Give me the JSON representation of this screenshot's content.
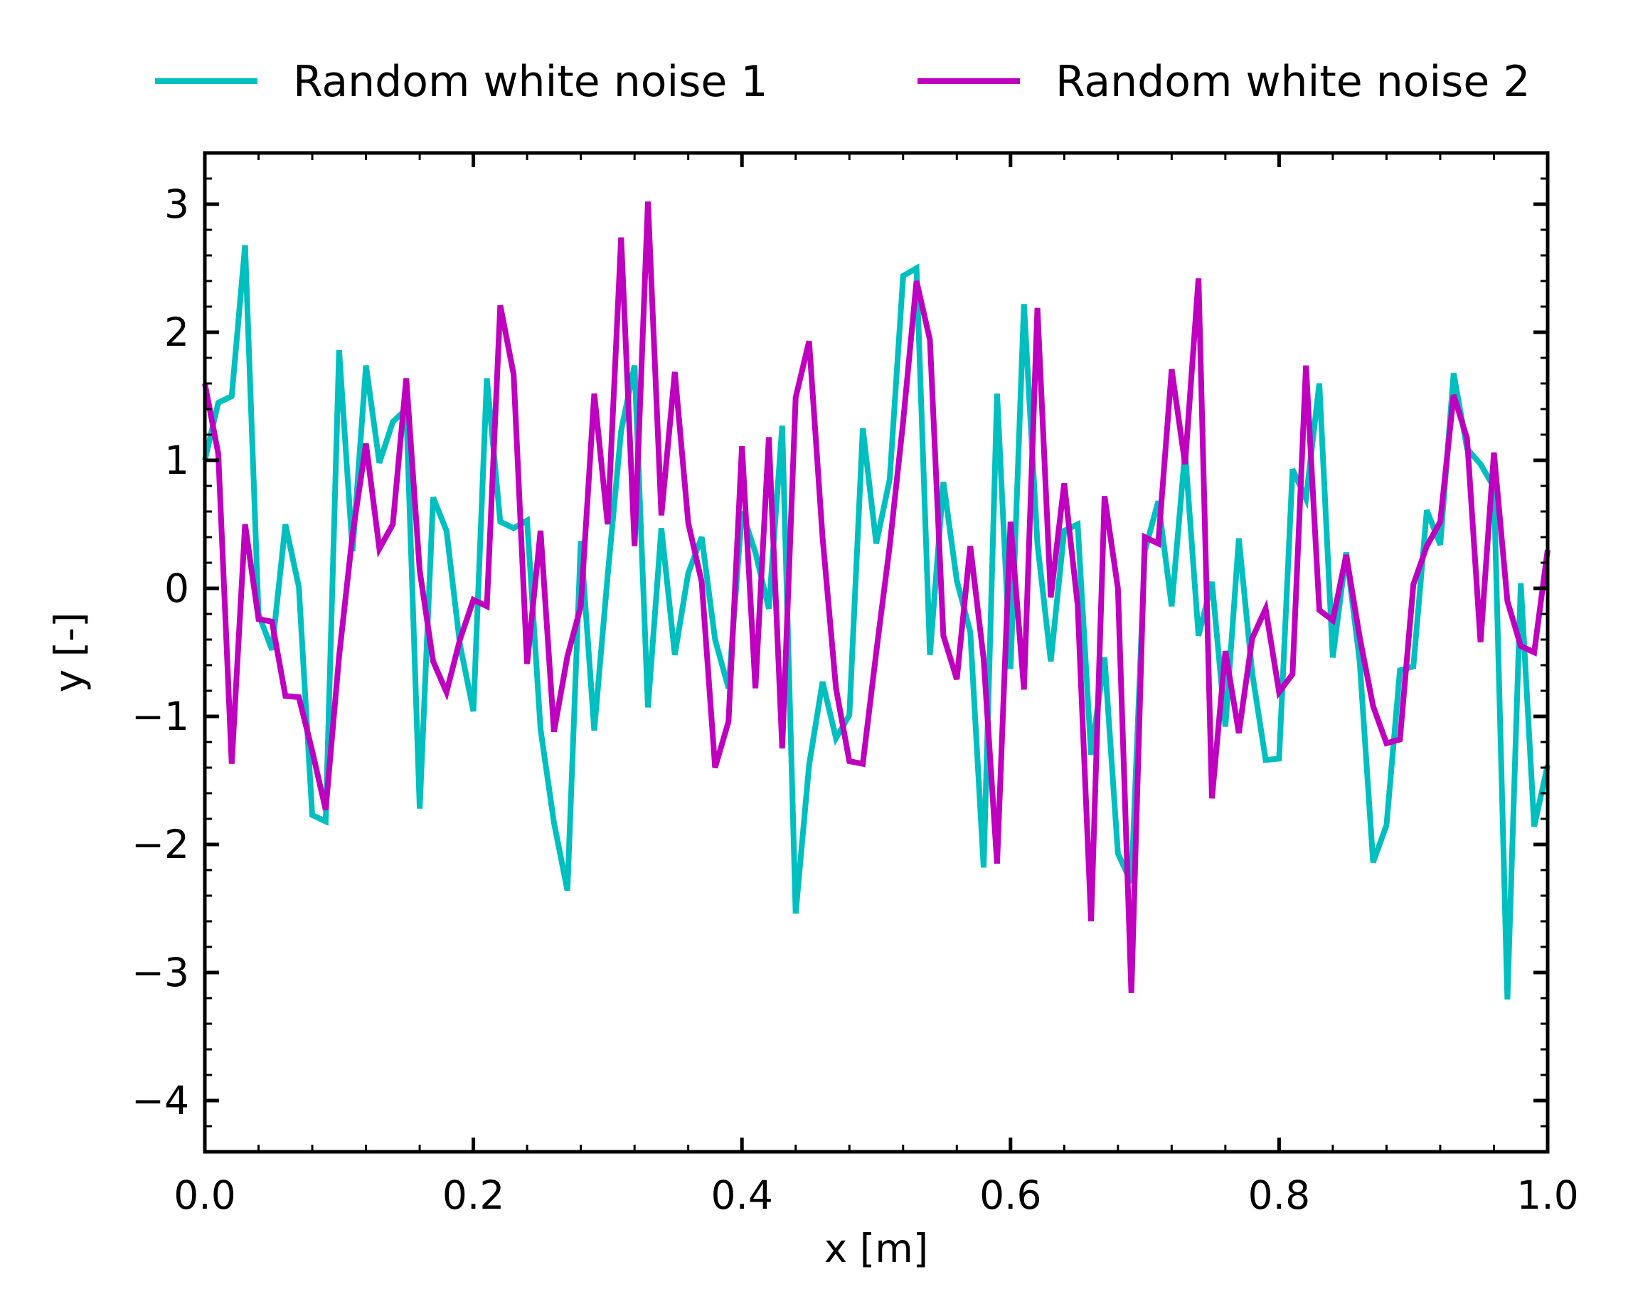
{
  "chart_data": {
    "type": "line",
    "xlabel": "x [m]",
    "ylabel": "y [-]",
    "xlim": [
      0.0,
      1.0
    ],
    "ylim": [
      -4.4,
      3.4
    ],
    "xticks": [
      0.0,
      0.2,
      0.4,
      0.6,
      0.8,
      1.0
    ],
    "xtick_labels": [
      "0.0",
      "0.2",
      "0.4",
      "0.6",
      "0.8",
      "1.0"
    ],
    "yticks": [
      3,
      2,
      1,
      0,
      -1,
      -2,
      -3,
      -4
    ],
    "ytick_labels": [
      "3",
      "2",
      "1",
      "0",
      "−1",
      "−2",
      "−3",
      "−4"
    ],
    "grid": false,
    "legend_position": "top-center",
    "x": [
      0.0,
      0.01,
      0.02,
      0.03,
      0.04,
      0.05,
      0.06,
      0.07,
      0.08,
      0.09,
      0.1,
      0.11,
      0.12,
      0.13,
      0.14,
      0.15,
      0.16,
      0.17,
      0.18,
      0.19,
      0.2,
      0.21,
      0.22,
      0.23,
      0.24,
      0.25,
      0.26,
      0.27,
      0.28,
      0.29,
      0.3,
      0.31,
      0.32,
      0.33,
      0.34,
      0.35,
      0.36,
      0.37,
      0.38,
      0.39,
      0.4,
      0.41,
      0.42,
      0.43,
      0.44,
      0.45,
      0.46,
      0.47,
      0.48,
      0.49,
      0.5,
      0.51,
      0.52,
      0.53,
      0.54,
      0.55,
      0.56,
      0.57,
      0.58,
      0.59,
      0.6,
      0.61,
      0.62,
      0.63,
      0.64,
      0.65,
      0.66,
      0.67,
      0.68,
      0.69,
      0.7,
      0.71,
      0.72,
      0.73,
      0.74,
      0.75,
      0.76,
      0.77,
      0.78,
      0.79,
      0.8,
      0.81,
      0.82,
      0.83,
      0.84,
      0.85,
      0.86,
      0.87,
      0.88,
      0.89,
      0.9,
      0.91,
      0.92,
      0.93,
      0.94,
      0.95,
      0.96,
      0.97,
      0.98,
      0.99,
      1.0
    ],
    "series": [
      {
        "name": "Random white noise 1",
        "color": "#00bfbf",
        "values": [
          1.0,
          1.45,
          1.5,
          2.68,
          -0.2,
          -0.48,
          0.5,
          0.01,
          -1.77,
          -1.82,
          1.86,
          0.29,
          1.74,
          0.98,
          1.3,
          1.4,
          -1.72,
          0.71,
          0.45,
          -0.44,
          -0.96,
          1.64,
          0.52,
          0.47,
          0.53,
          -1.1,
          -1.83,
          -2.36,
          0.37,
          -1.11,
          0.1,
          1.23,
          1.74,
          -0.93,
          0.47,
          -0.52,
          0.12,
          0.4,
          -0.4,
          -0.78,
          0.6,
          0.28,
          -0.16,
          1.27,
          -2.54,
          -1.38,
          -0.73,
          -1.17,
          -0.99,
          1.25,
          0.35,
          0.85,
          2.44,
          2.5,
          -0.52,
          0.83,
          0.06,
          -0.34,
          -2.18,
          1.52,
          -0.63,
          2.22,
          0.35,
          -0.57,
          0.45,
          0.5,
          -1.3,
          -0.54,
          -2.07,
          -2.3,
          0.29,
          0.68,
          -0.14,
          1.07,
          -0.37,
          0.05,
          -1.08,
          0.39,
          -0.66,
          -1.34,
          -1.33,
          0.93,
          0.7,
          1.6,
          -0.54,
          0.28,
          -0.57,
          -2.14,
          -1.85,
          -0.64,
          -0.61,
          0.61,
          0.34,
          1.68,
          1.09,
          0.97,
          0.79,
          -3.21,
          0.04,
          -1.86,
          -1.38
        ]
      },
      {
        "name": "Random white noise 2",
        "color": "#bf00bf",
        "values": [
          1.6,
          1.05,
          -1.37,
          0.5,
          -0.24,
          -0.26,
          -0.84,
          -0.85,
          -1.27,
          -1.73,
          -0.53,
          0.42,
          1.13,
          0.31,
          0.5,
          1.64,
          0.14,
          -0.57,
          -0.81,
          -0.4,
          -0.09,
          -0.14,
          2.21,
          1.67,
          -0.59,
          0.45,
          -1.12,
          -0.53,
          -0.14,
          1.52,
          0.5,
          2.74,
          0.33,
          3.02,
          0.57,
          1.69,
          0.51,
          0.05,
          -1.4,
          -1.04,
          1.11,
          -0.78,
          1.18,
          -1.25,
          1.49,
          1.93,
          0.4,
          -0.78,
          -1.35,
          -1.37,
          -0.5,
          0.33,
          1.3,
          2.4,
          1.94,
          -0.37,
          -0.71,
          0.33,
          -0.55,
          -2.15,
          0.52,
          -0.79,
          2.19,
          -0.07,
          0.82,
          -0.13,
          -2.6,
          0.72,
          0.0,
          -3.16,
          0.4,
          0.35,
          1.71,
          0.97,
          2.42,
          -1.64,
          -0.49,
          -1.13,
          -0.39,
          -0.16,
          -0.81,
          -0.67,
          1.74,
          -0.17,
          -0.25,
          0.26,
          -0.38,
          -0.92,
          -1.21,
          -1.18,
          0.03,
          0.33,
          0.52,
          1.51,
          1.17,
          -0.42,
          1.06,
          -0.1,
          -0.45,
          -0.5,
          0.3
        ]
      }
    ]
  }
}
